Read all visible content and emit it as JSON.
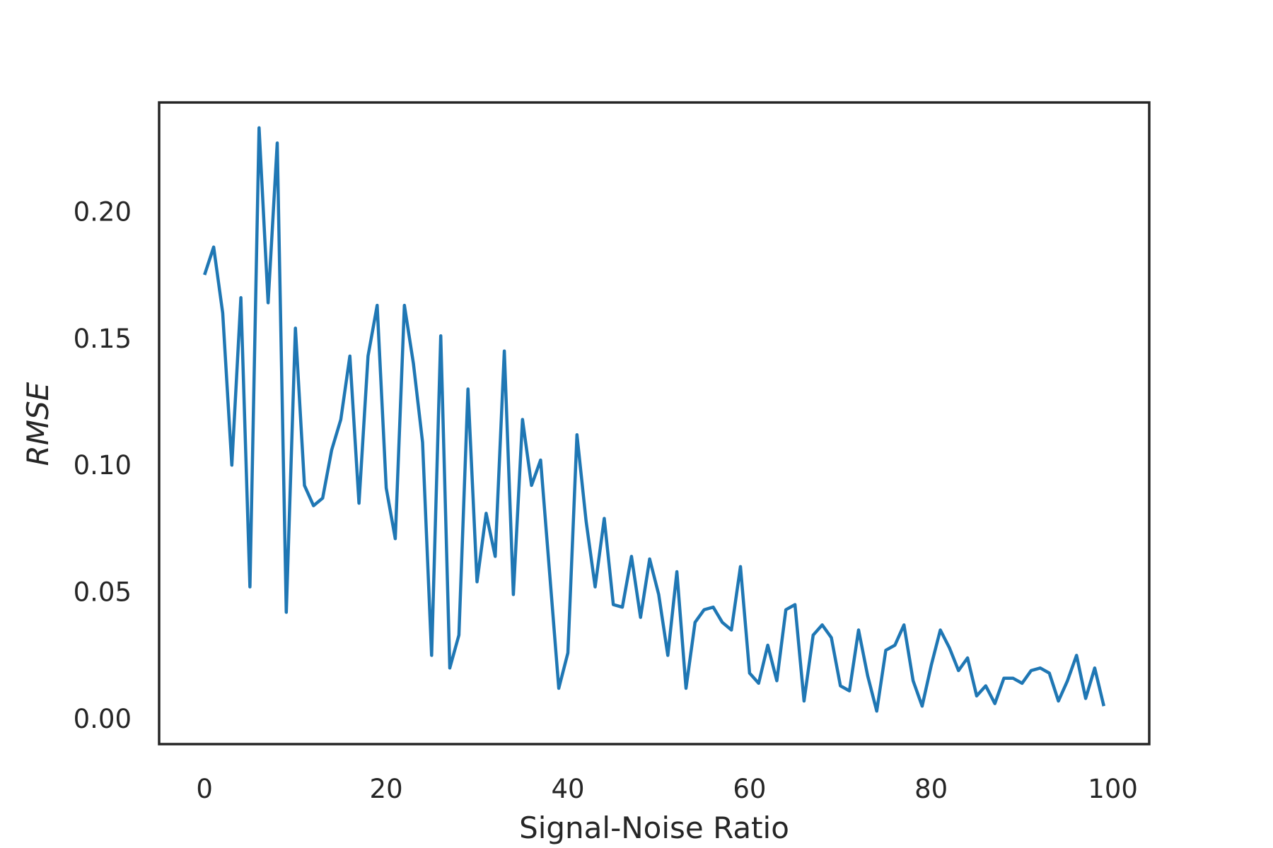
{
  "chart_data": {
    "type": "line",
    "xlabel": "Signal-Noise Ratio",
    "ylabel": "RMSE",
    "xlim": [
      -5,
      104
    ],
    "ylim": [
      -0.01,
      0.243
    ],
    "xticks": [
      0,
      20,
      40,
      60,
      80,
      100
    ],
    "xtick_labels": [
      "0",
      "20",
      "40",
      "60",
      "80",
      "100"
    ],
    "yticks": [
      0.0,
      0.05,
      0.1,
      0.15,
      0.2
    ],
    "ytick_labels": [
      "0.00",
      "0.05",
      "0.10",
      "0.15",
      "0.20"
    ],
    "grid": false,
    "legend": false,
    "series": [
      {
        "color": "#1f77b4",
        "x": [
          0,
          1,
          2,
          3,
          4,
          5,
          6,
          7,
          8,
          9,
          10,
          11,
          12,
          13,
          14,
          15,
          16,
          17,
          18,
          19,
          20,
          21,
          22,
          23,
          24,
          25,
          26,
          27,
          28,
          29,
          30,
          31,
          32,
          33,
          34,
          35,
          36,
          37,
          38,
          39,
          40,
          41,
          42,
          43,
          44,
          45,
          46,
          47,
          48,
          49,
          50,
          51,
          52,
          53,
          54,
          55,
          56,
          57,
          58,
          59,
          60,
          61,
          62,
          63,
          64,
          65,
          66,
          67,
          68,
          69,
          70,
          71,
          72,
          73,
          74,
          75,
          76,
          77,
          78,
          79,
          80,
          81,
          82,
          83,
          84,
          85,
          86,
          87,
          88,
          89,
          90,
          91,
          92,
          93,
          94,
          95,
          96,
          97,
          98,
          99
        ],
        "values": [
          0.175,
          0.186,
          0.16,
          0.1,
          0.166,
          0.052,
          0.233,
          0.164,
          0.227,
          0.042,
          0.154,
          0.092,
          0.084,
          0.087,
          0.106,
          0.118,
          0.143,
          0.085,
          0.143,
          0.163,
          0.091,
          0.071,
          0.163,
          0.14,
          0.109,
          0.025,
          0.151,
          0.02,
          0.033,
          0.13,
          0.054,
          0.081,
          0.064,
          0.145,
          0.049,
          0.118,
          0.092,
          0.102,
          0.057,
          0.012,
          0.026,
          0.112,
          0.078,
          0.052,
          0.079,
          0.045,
          0.044,
          0.064,
          0.04,
          0.063,
          0.049,
          0.025,
          0.058,
          0.012,
          0.038,
          0.043,
          0.044,
          0.038,
          0.035,
          0.06,
          0.018,
          0.014,
          0.029,
          0.015,
          0.043,
          0.045,
          0.007,
          0.033,
          0.037,
          0.032,
          0.013,
          0.011,
          0.035,
          0.017,
          0.003,
          0.027,
          0.029,
          0.037,
          0.015,
          0.005,
          0.021,
          0.035,
          0.028,
          0.019,
          0.024,
          0.009,
          0.013,
          0.006,
          0.016,
          0.016,
          0.014,
          0.019,
          0.02,
          0.018,
          0.007,
          0.015,
          0.025,
          0.008,
          0.02,
          0.005
        ]
      }
    ]
  }
}
